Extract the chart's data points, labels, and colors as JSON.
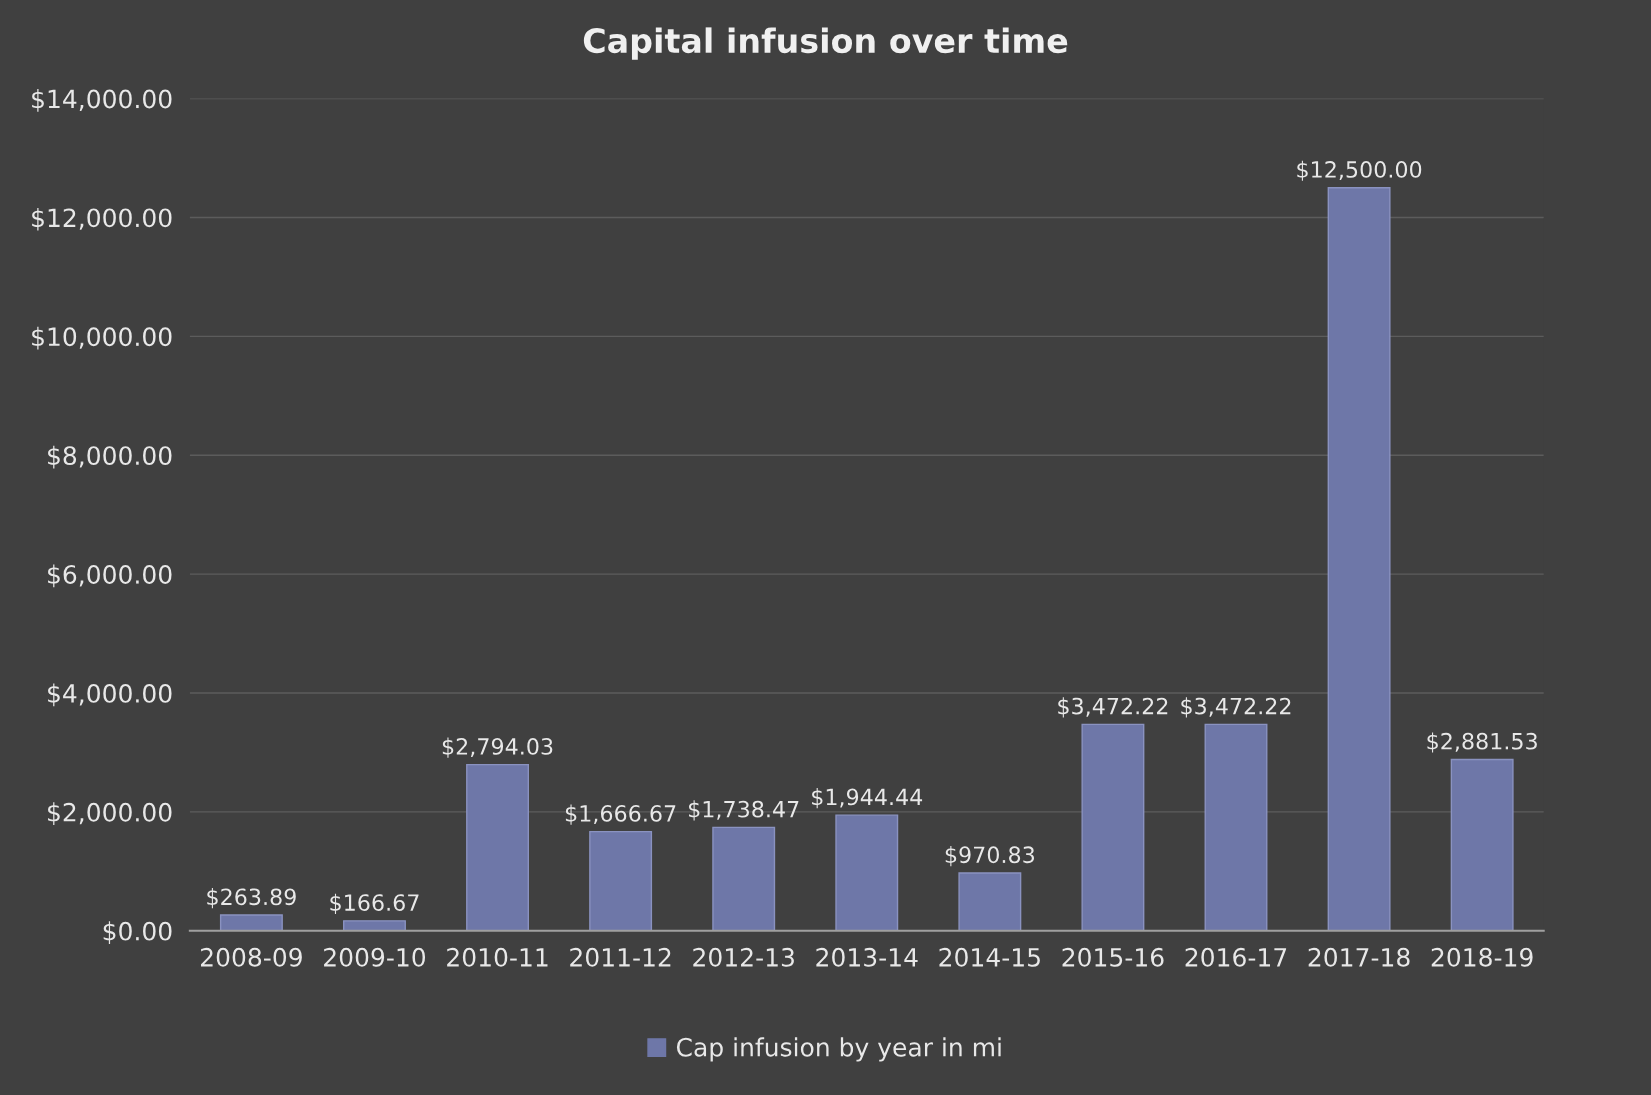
{
  "chart_data": {
    "type": "bar",
    "title": "Capital infusion over time",
    "categories": [
      "2008-09",
      "2009-10",
      "2010-11",
      "2011-12",
      "2012-13",
      "2013-14",
      "2014-15",
      "2015-16",
      "2016-17",
      "2017-18",
      "2018-19"
    ],
    "series": [
      {
        "name": "Cap infusion by year in mi",
        "color": "#6e77a8",
        "values": [
          263.89,
          166.67,
          2794.03,
          1666.67,
          1738.47,
          1944.44,
          970.83,
          3472.22,
          3472.22,
          12500.0,
          2881.53
        ],
        "value_labels": [
          "$263.89",
          "$166.67",
          "$2,794.03",
          "$1,666.67",
          "$1,738.47",
          "$1,944.44",
          "$970.83",
          "$3,472.22",
          "$3,472.22",
          "$12,500.00",
          "$2,881.53"
        ]
      }
    ],
    "ylim": [
      0,
      14000
    ],
    "yticks": [
      {
        "value": 0,
        "label": "$0.00"
      },
      {
        "value": 2000,
        "label": "$2,000.00"
      },
      {
        "value": 4000,
        "label": "$4,000.00"
      },
      {
        "value": 6000,
        "label": "$6,000.00"
      },
      {
        "value": 8000,
        "label": "$8,000.00"
      },
      {
        "value": 10000,
        "label": "$10,000.00"
      },
      {
        "value": 12000,
        "label": "$12,000.00"
      },
      {
        "value": 14000,
        "label": "$14,000.00"
      }
    ],
    "grid": "y",
    "legend": "bottom"
  }
}
